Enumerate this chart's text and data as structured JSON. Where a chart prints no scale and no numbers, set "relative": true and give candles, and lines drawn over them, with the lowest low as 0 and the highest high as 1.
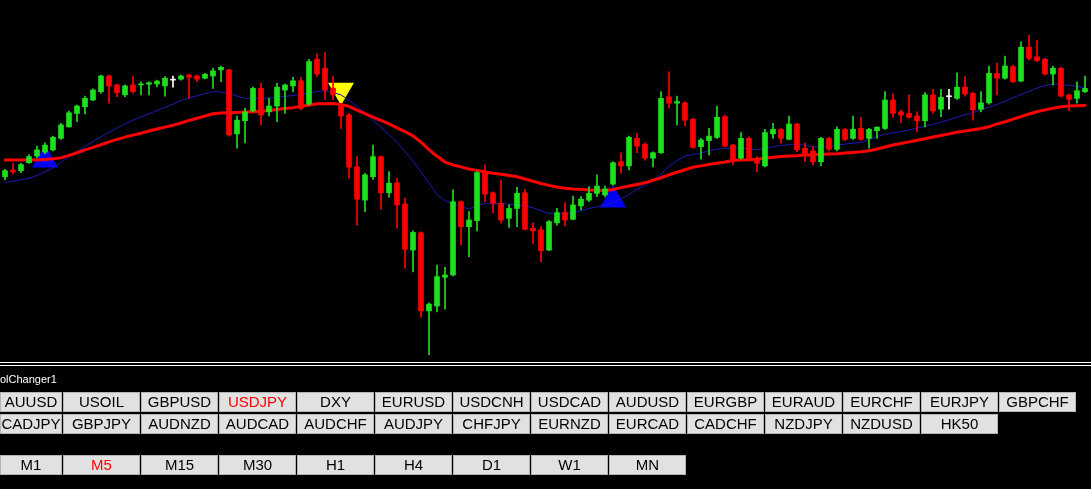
{
  "chart_data": [
    {
      "type": "candlestick",
      "relative": true,
      "tick_labels": false,
      "categories": [
        null,
        null,
        null,
        null,
        null,
        null,
        null,
        null,
        null,
        null,
        null,
        null,
        null,
        null,
        null,
        null,
        null,
        null,
        null,
        null,
        null,
        null,
        null,
        null,
        null,
        null,
        null,
        null,
        null,
        null,
        null,
        null,
        null,
        null,
        null,
        null,
        null,
        null,
        null,
        null,
        null,
        null,
        null,
        null,
        null,
        null,
        null,
        null,
        null,
        null,
        null,
        null,
        null,
        null,
        null,
        null,
        null,
        null,
        null,
        null,
        null,
        null,
        null,
        null,
        null,
        null,
        null,
        null,
        null,
        null,
        null,
        null,
        null,
        null,
        null,
        null,
        null,
        null,
        null,
        null,
        null,
        null,
        null,
        null,
        null,
        null,
        null,
        null,
        null,
        null,
        null,
        null,
        null,
        null,
        null,
        null,
        null,
        null,
        null,
        null,
        null,
        null,
        null,
        null,
        null,
        null,
        null,
        null,
        null,
        null,
        null,
        null,
        null,
        null,
        null,
        null,
        null,
        null,
        null,
        null,
        null,
        null,
        null,
        null,
        null,
        null,
        null,
        null,
        null,
        null,
        null,
        null,
        null,
        null,
        null,
        null
      ],
      "ohlc": [
        [
          0.557,
          0.58,
          0.547,
          0.576
        ],
        [
          0.578,
          0.599,
          0.566,
          0.572
        ],
        [
          0.576,
          0.599,
          0.57,
          0.595
        ],
        [
          0.601,
          0.626,
          0.599,
          0.62
        ],
        [
          0.622,
          0.653,
          0.616,
          0.641
        ],
        [
          0.634,
          0.663,
          0.628,
          0.656
        ],
        [
          0.641,
          0.684,
          0.638,
          0.68
        ],
        [
          0.677,
          0.724,
          0.674,
          0.719
        ],
        [
          0.713,
          0.762,
          0.712,
          0.757
        ],
        [
          0.755,
          0.781,
          0.729,
          0.778
        ],
        [
          0.776,
          0.809,
          0.753,
          0.802
        ],
        [
          0.797,
          0.832,
          0.795,
          0.828
        ],
        [
          0.823,
          0.875,
          0.818,
          0.872
        ],
        [
          0.872,
          0.875,
          0.787,
          0.841
        ],
        [
          0.844,
          0.846,
          0.807,
          0.82
        ],
        [
          0.813,
          0.844,
          0.807,
          0.841
        ],
        [
          0.844,
          0.872,
          0.818,
          0.823
        ],
        [
          0.844,
          0.854,
          0.813,
          0.847
        ],
        [
          0.846,
          0.854,
          0.813,
          0.851
        ],
        [
          0.847,
          0.859,
          0.838,
          0.856
        ],
        [
          0.841,
          0.87,
          0.809,
          0.865
        ],
        [
          0.859,
          0.872,
          0.837,
          0.859
        ],
        [
          0.862,
          0.875,
          0.859,
          0.872
        ],
        [
          0.875,
          0.877,
          0.802,
          0.868
        ],
        [
          0.872,
          0.875,
          0.854,
          0.862
        ],
        [
          0.865,
          0.88,
          0.863,
          0.877
        ],
        [
          0.872,
          0.896,
          0.833,
          0.888
        ],
        [
          0.891,
          0.903,
          0.854,
          0.899
        ],
        [
          0.891,
          0.893,
          0.684,
          0.688
        ],
        [
          0.691,
          0.747,
          0.646,
          0.734
        ],
        [
          0.732,
          0.771,
          0.663,
          0.76
        ],
        [
          0.763,
          0.837,
          0.76,
          0.833
        ],
        [
          0.833,
          0.849,
          0.719,
          0.75
        ],
        [
          0.76,
          0.802,
          0.747,
          0.778
        ],
        [
          0.778,
          0.849,
          0.729,
          0.837
        ],
        [
          0.828,
          0.847,
          0.755,
          0.844
        ],
        [
          0.841,
          0.868,
          0.823,
          0.857
        ],
        [
          0.857,
          0.868,
          0.766,
          0.771
        ],
        [
          0.784,
          0.924,
          0.781,
          0.917
        ],
        [
          0.924,
          0.941,
          0.87,
          0.878
        ],
        [
          0.896,
          0.945,
          0.799,
          0.828
        ],
        [
          0.834,
          0.872,
          0.797,
          0.813
        ],
        [
          0.778,
          0.781,
          0.708,
          0.747
        ],
        [
          0.75,
          0.755,
          0.552,
          0.587
        ],
        [
          0.588,
          0.62,
          0.406,
          0.487
        ],
        [
          0.484,
          0.568,
          0.448,
          0.563
        ],
        [
          0.557,
          0.656,
          0.549,
          0.62
        ],
        [
          0.62,
          0.622,
          0.455,
          0.507
        ],
        [
          0.507,
          0.573,
          0.493,
          0.537
        ],
        [
          0.538,
          0.552,
          0.396,
          0.469
        ],
        [
          0.472,
          0.49,
          0.271,
          0.33
        ],
        [
          0.328,
          0.388,
          0.26,
          0.383
        ],
        [
          0.382,
          0.385,
          0.118,
          0.138
        ],
        [
          0.138,
          0.163,
          0,
          0.159
        ],
        [
          0.153,
          0.281,
          0.135,
          0.245
        ],
        [
          0.243,
          0.274,
          0.143,
          0.25
        ],
        [
          0.25,
          0.516,
          0.247,
          0.479
        ],
        [
          0.479,
          0.482,
          0.344,
          0.401
        ],
        [
          0.401,
          0.448,
          0.307,
          0.422
        ],
        [
          0.42,
          0.573,
          0.388,
          0.57
        ],
        [
          0.57,
          0.594,
          0.479,
          0.503
        ],
        [
          0.507,
          0.51,
          0.445,
          0.474
        ],
        [
          0.474,
          0.547,
          0.413,
          0.422
        ],
        [
          0.427,
          0.469,
          0.399,
          0.458
        ],
        [
          0.458,
          0.524,
          0.401,
          0.505
        ],
        [
          0.507,
          0.518,
          0.391,
          0.393
        ],
        [
          0.396,
          0.413,
          0.349,
          0.388
        ],
        [
          0.391,
          0.401,
          0.292,
          0.326
        ],
        [
          0.328,
          0.42,
          0.326,
          0.417
        ],
        [
          0.413,
          0.458,
          0.406,
          0.445
        ],
        [
          0.445,
          0.476,
          0.403,
          0.422
        ],
        [
          0.424,
          0.497,
          0.422,
          0.469
        ],
        [
          0.466,
          0.495,
          0.453,
          0.487
        ],
        [
          0.484,
          0.526,
          0.479,
          0.505
        ],
        [
          0.505,
          0.563,
          0.495,
          0.528
        ],
        [
          0.5,
          0.528,
          0.494,
          0.519
        ],
        [
          0.534,
          0.604,
          0.531,
          0.601
        ],
        [
          0.604,
          0.632,
          0.568,
          0.591
        ],
        [
          0.591,
          0.684,
          0.578,
          0.68
        ],
        [
          0.677,
          0.693,
          0.632,
          0.653
        ],
        [
          0.659,
          0.663,
          0.609,
          0.615
        ],
        [
          0.615,
          0.635,
          0.588,
          0.632
        ],
        [
          0.632,
          0.823,
          0.63,
          0.802
        ],
        [
          0.807,
          0.885,
          0.771,
          0.787
        ],
        [
          0.787,
          0.809,
          0.719,
          0.792
        ],
        [
          0.788,
          0.792,
          0.716,
          0.734
        ],
        [
          0.737,
          0.74,
          0.646,
          0.649
        ],
        [
          0.651,
          0.677,
          0.612,
          0.672
        ],
        [
          0.67,
          0.708,
          0.625,
          0.684
        ],
        [
          0.68,
          0.778,
          0.677,
          0.743
        ],
        [
          0.745,
          0.75,
          0.651,
          0.653
        ],
        [
          0.656,
          0.659,
          0.594,
          0.609
        ],
        [
          0.615,
          0.695,
          0.612,
          0.677
        ],
        [
          0.677,
          0.682,
          0.607,
          0.609
        ],
        [
          0.612,
          0.62,
          0.573,
          0.599
        ],
        [
          0.591,
          0.705,
          0.588,
          0.695
        ],
        [
          0.691,
          0.724,
          0.677,
          0.705
        ],
        [
          0.705,
          0.708,
          0.662,
          0.677
        ],
        [
          0.674,
          0.747,
          0.672,
          0.722
        ],
        [
          0.722,
          0.724,
          0.635,
          0.641
        ],
        [
          0.646,
          0.662,
          0.604,
          0.63
        ],
        [
          0.638,
          0.651,
          0.594,
          0.604
        ],
        [
          0.604,
          0.68,
          0.591,
          0.677
        ],
        [
          0.677,
          0.68,
          0.638,
          0.643
        ],
        [
          0.643,
          0.713,
          0.638,
          0.705
        ],
        [
          0.705,
          0.708,
          0.67,
          0.674
        ],
        [
          0.677,
          0.747,
          0.674,
          0.705
        ],
        [
          0.708,
          0.743,
          0.67,
          0.674
        ],
        [
          0.677,
          0.708,
          0.646,
          0.705
        ],
        [
          0.701,
          0.713,
          0.677,
          0.712
        ],
        [
          0.708,
          0.823,
          0.705,
          0.797
        ],
        [
          0.797,
          0.816,
          0.743,
          0.755
        ],
        [
          0.76,
          0.766,
          0.726,
          0.75
        ],
        [
          0.755,
          0.813,
          0.74,
          0.743
        ],
        [
          0.747,
          0.76,
          0.698,
          0.732
        ],
        [
          0.732,
          0.82,
          0.713,
          0.813
        ],
        [
          0.813,
          0.83,
          0.755,
          0.763
        ],
        [
          0.768,
          0.83,
          0.745,
          0.805
        ],
        [
          0.807,
          0.83,
          0.768,
          0.807
        ],
        [
          0.802,
          0.882,
          0.799,
          0.837
        ],
        [
          0.837,
          0.87,
          0.809,
          0.816
        ],
        [
          0.818,
          0.82,
          0.734,
          0.766
        ],
        [
          0.768,
          0.823,
          0.76,
          0.788
        ],
        [
          0.788,
          0.903,
          0.784,
          0.88
        ],
        [
          0.88,
          0.912,
          0.813,
          0.865
        ],
        [
          0.865,
          0.934,
          0.862,
          0.903
        ],
        [
          0.901,
          0.906,
          0.851,
          0.854
        ],
        [
          0.856,
          0.979,
          0.854,
          0.962
        ],
        [
          0.962,
          1,
          0.922,
          0.927
        ],
        [
          0.932,
          0.984,
          0.917,
          0.92
        ],
        [
          0.924,
          0.927,
          0.875,
          0.878
        ],
        [
          0.878,
          0.903,
          0.844,
          0.896
        ],
        [
          0.896,
          0.899,
          0.807,
          0.809
        ],
        [
          0.813,
          0.816,
          0.763,
          0.799
        ],
        [
          0.802,
          0.854,
          0.787,
          0.826
        ],
        [
          0.823,
          0.872,
          0.82,
          0.833
        ]
      ],
      "colors": [
        "#1fe01f",
        "#ff0000",
        "#1fe01f",
        "#1fe01f",
        "#1fe01f",
        "#1fe01f",
        "#1fe01f",
        "#1fe01f",
        "#1fe01f",
        "#1fe01f",
        "#1fe01f",
        "#1fe01f",
        "#1fe01f",
        "#ff0000",
        "#ff0000",
        "#1fe01f",
        "#ff0000",
        "#1fe01f",
        "#1fe01f",
        "#1fe01f",
        "#1fe01f",
        "#ffffff",
        "#1fe01f",
        "#ff0000",
        "#ff0000",
        "#1fe01f",
        "#1fe01f",
        "#1fe01f",
        "#ff0000",
        "#1fe01f",
        "#1fe01f",
        "#1fe01f",
        "#ff0000",
        "#1fe01f",
        "#1fe01f",
        "#1fe01f",
        "#1fe01f",
        "#ff0000",
        "#1fe01f",
        "#ff0000",
        "#ff0000",
        "#ff0000",
        "#ff0000",
        "#ff0000",
        "#ff0000",
        "#1fe01f",
        "#1fe01f",
        "#ff0000",
        "#1fe01f",
        "#ff0000",
        "#ff0000",
        "#1fe01f",
        "#ff0000",
        "#1fe01f",
        "#1fe01f",
        "#1fe01f",
        "#1fe01f",
        "#ff0000",
        "#1fe01f",
        "#1fe01f",
        "#ff0000",
        "#ff0000",
        "#ff0000",
        "#1fe01f",
        "#1fe01f",
        "#ff0000",
        "#ff0000",
        "#ff0000",
        "#1fe01f",
        "#1fe01f",
        "#ff0000",
        "#1fe01f",
        "#1fe01f",
        "#1fe01f",
        "#1fe01f",
        "#1fe01f",
        "#1fe01f",
        "#ff0000",
        "#1fe01f",
        "#ff0000",
        "#ff0000",
        "#1fe01f",
        "#1fe01f",
        "#ff0000",
        "#1fe01f",
        "#ff0000",
        "#ff0000",
        "#1fe01f",
        "#1fe01f",
        "#1fe01f",
        "#ff0000",
        "#ff0000",
        "#1fe01f",
        "#ff0000",
        "#ff0000",
        "#1fe01f",
        "#1fe01f",
        "#ff0000",
        "#1fe01f",
        "#ff0000",
        "#ff0000",
        "#ff0000",
        "#1fe01f",
        "#ff0000",
        "#1fe01f",
        "#ff0000",
        "#1fe01f",
        "#ff0000",
        "#1fe01f",
        "#1fe01f",
        "#1fe01f",
        "#ff0000",
        "#ff0000",
        "#ff0000",
        "#ff0000",
        "#1fe01f",
        "#ff0000",
        "#1fe01f",
        "#ffffff",
        "#1fe01f",
        "#ff0000",
        "#ff0000",
        "#1fe01f",
        "#1fe01f",
        "#ff0000",
        "#1fe01f",
        "#ff0000",
        "#1fe01f",
        "#ff0000",
        "#ff0000",
        "#ff0000",
        "#1fe01f",
        "#ff0000",
        "#ff0000",
        "#1fe01f",
        "#1fe01f"
      ],
      "series": [
        {
          "type": "line",
          "color": "#ff0000",
          "values": [
            0.609,
            0.609,
            0.609,
            0.609,
            0.609,
            0.611,
            0.613,
            0.616,
            0.624,
            0.632,
            0.641,
            0.649,
            0.657,
            0.666,
            0.674,
            0.681,
            0.687,
            0.693,
            0.7,
            0.706,
            0.712,
            0.718,
            0.725,
            0.733,
            0.74,
            0.747,
            0.754,
            0.756,
            0.757,
            0.758,
            0.759,
            0.76,
            0.762,
            0.764,
            0.767,
            0.77,
            0.773,
            0.777,
            0.781,
            0.785,
            0.785,
            0.786,
            0.783,
            0.777,
            0.765,
            0.754,
            0.743,
            0.733,
            0.722,
            0.71,
            0.698,
            0.685,
            0.665,
            0.642,
            0.621,
            0.603,
            0.594,
            0.588,
            0.581,
            0.577,
            0.572,
            0.568,
            0.565,
            0.561,
            0.557,
            0.55,
            0.543,
            0.536,
            0.53,
            0.525,
            0.521,
            0.519,
            0.518,
            0.516,
            0.515,
            0.514,
            0.517,
            0.523,
            0.528,
            0.533,
            0.538,
            0.546,
            0.554,
            0.563,
            0.571,
            0.579,
            0.587,
            0.591,
            0.595,
            0.599,
            0.603,
            0.608,
            0.609,
            0.61,
            0.612,
            0.615,
            0.618,
            0.62,
            0.622,
            0.623,
            0.625,
            0.626,
            0.627,
            0.628,
            0.629,
            0.631,
            0.633,
            0.635,
            0.638,
            0.644,
            0.65,
            0.656,
            0.661,
            0.666,
            0.671,
            0.676,
            0.681,
            0.686,
            0.691,
            0.696,
            0.7,
            0.704,
            0.708,
            0.713,
            0.722,
            0.729,
            0.737,
            0.745,
            0.753,
            0.76,
            0.766,
            0.771,
            0.776,
            0.778,
            0.779,
            0.78
          ]
        },
        {
          "type": "line",
          "color": "#1a1ab4",
          "values": [
            0.539,
            0.543,
            0.548,
            0.552,
            0.561,
            0.572,
            0.585,
            0.602,
            0.619,
            0.635,
            0.652,
            0.667,
            0.682,
            0.696,
            0.709,
            0.722,
            0.734,
            0.744,
            0.754,
            0.764,
            0.774,
            0.784,
            0.795,
            0.804,
            0.81,
            0.817,
            0.823,
            0.822,
            0.817,
            0.809,
            0.802,
            0.802,
            0.802,
            0.803,
            0.806,
            0.808,
            0.811,
            0.814,
            0.819,
            0.823,
            0.826,
            0.82,
            0.813,
            0.796,
            0.776,
            0.755,
            0.734,
            0.712,
            0.689,
            0.665,
            0.635,
            0.606,
            0.572,
            0.536,
            0.502,
            0.482,
            0.471,
            0.464,
            0.456,
            0.468,
            0.474,
            0.474,
            0.473,
            0.471,
            0.469,
            0.466,
            0.46,
            0.451,
            0.442,
            0.441,
            0.442,
            0.445,
            0.451,
            0.458,
            0.463,
            0.468,
            0.477,
            0.487,
            0.502,
            0.518,
            0.53,
            0.546,
            0.566,
            0.59,
            0.608,
            0.622,
            0.626,
            0.631,
            0.638,
            0.643,
            0.646,
            0.646,
            0.646,
            0.644,
            0.641,
            0.646,
            0.651,
            0.655,
            0.657,
            0.659,
            0.655,
            0.651,
            0.65,
            0.651,
            0.656,
            0.659,
            0.662,
            0.664,
            0.673,
            0.683,
            0.69,
            0.694,
            0.698,
            0.703,
            0.709,
            0.715,
            0.721,
            0.728,
            0.735,
            0.743,
            0.751,
            0.758,
            0.766,
            0.774,
            0.783,
            0.793,
            0.804,
            0.814,
            0.824,
            0.834,
            0.842,
            0.847,
            0.845,
            0.843,
            0.839,
            0.836
          ]
        },
        {
          "type": "scatter",
          "color": "#0000ff",
          "marker": "triangle",
          "values": [
            null,
            null,
            null,
            null,
            null,
            0.609,
            null,
            null,
            null,
            null,
            null,
            null,
            null,
            null,
            null,
            null,
            null,
            null,
            null,
            null,
            null,
            null,
            null,
            null,
            null,
            null,
            null,
            null,
            null,
            null,
            null,
            null,
            null,
            null,
            null,
            null,
            null,
            null,
            null,
            null,
            null,
            null,
            null,
            null,
            null,
            null,
            null,
            null,
            null,
            null,
            null,
            null,
            null,
            null,
            null,
            null,
            null,
            null,
            null,
            null,
            null,
            null,
            null,
            null,
            null,
            null,
            null,
            null,
            null,
            null,
            null,
            null,
            null,
            null,
            null,
            null,
            0.484,
            null,
            null,
            null,
            null,
            null,
            null,
            null,
            null,
            null,
            null,
            null,
            null,
            null,
            null,
            null,
            null,
            null,
            null,
            null,
            null,
            null,
            null,
            null,
            null,
            null,
            null,
            null,
            null,
            null,
            null,
            null,
            null,
            null,
            null,
            null,
            null,
            null,
            null,
            null,
            null,
            null,
            null,
            null,
            null,
            null,
            null,
            null,
            null,
            null,
            null,
            null,
            null,
            null,
            null,
            null,
            null,
            null,
            null,
            null
          ]
        },
        {
          "type": "scatter",
          "color": "#ffff00",
          "marker": "triangle",
          "values": [
            null,
            null,
            null,
            null,
            null,
            null,
            null,
            null,
            null,
            null,
            null,
            null,
            null,
            null,
            null,
            null,
            null,
            null,
            null,
            null,
            null,
            null,
            null,
            null,
            null,
            null,
            null,
            null,
            null,
            null,
            null,
            null,
            null,
            null,
            null,
            null,
            null,
            null,
            null,
            null,
            null,
            null,
            0.827,
            null,
            null,
            null,
            null,
            null,
            null,
            null,
            null,
            null,
            null,
            null,
            null,
            null,
            null,
            null,
            null,
            null,
            null,
            null,
            null,
            null,
            null,
            null,
            null,
            null,
            null,
            null,
            null,
            null,
            null,
            null,
            null,
            null,
            null,
            null,
            null,
            null,
            null,
            null,
            null,
            null,
            null,
            null,
            null,
            null,
            null,
            null,
            null,
            null,
            null,
            null,
            null,
            null,
            null,
            null,
            null,
            null,
            null,
            null,
            null,
            null,
            null,
            null,
            null,
            null,
            null,
            null,
            null,
            null,
            null,
            null,
            null,
            null,
            null,
            null,
            null,
            null,
            null,
            null,
            null,
            null,
            null,
            null,
            null,
            null,
            null,
            null,
            null,
            null,
            null,
            null,
            null,
            null
          ]
        }
      ]
    },
    {
      "type": "other",
      "title": "olChanger1",
      "annotations": [
        "AUUSD",
        "USOIL",
        "GBPUSD",
        "USDJPY",
        "DXY",
        "EURUSD",
        "USDCNH",
        "USDCAD",
        "AUDUSD",
        "EURGBP",
        "EURAUD",
        "EURCHF",
        "EURJPY",
        "GBPCHF",
        "CADJPY",
        "GBPJPY",
        "AUDNZD",
        "AUDCAD",
        "AUDCHF",
        "AUDJPY",
        "CHFJPY",
        "EURNZD",
        "EURCAD",
        "CADCHF",
        "NZDJPY",
        "NZDUSD",
        "HK50"
      ],
      "colors": [
        "#000000",
        "#000000",
        "#000000",
        "#ff0000",
        "#000000",
        "#000000",
        "#000000",
        "#000000",
        "#000000",
        "#000000",
        "#000000",
        "#000000",
        "#000000",
        "#000000",
        "#000000",
        "#000000",
        "#000000",
        "#000000",
        "#000000",
        "#000000",
        "#000000",
        "#000000",
        "#000000",
        "#000000",
        "#000000",
        "#000000",
        "#000000"
      ]
    },
    {
      "type": "other",
      "annotations": [
        "M1",
        "M5",
        "M15",
        "M30",
        "H1",
        "H4",
        "D1",
        "W1",
        "MN"
      ],
      "colors": [
        "#000000",
        "#ff0000",
        "#000000",
        "#000000",
        "#000000",
        "#000000",
        "#000000",
        "#000000",
        "#000000"
      ]
    }
  ]
}
